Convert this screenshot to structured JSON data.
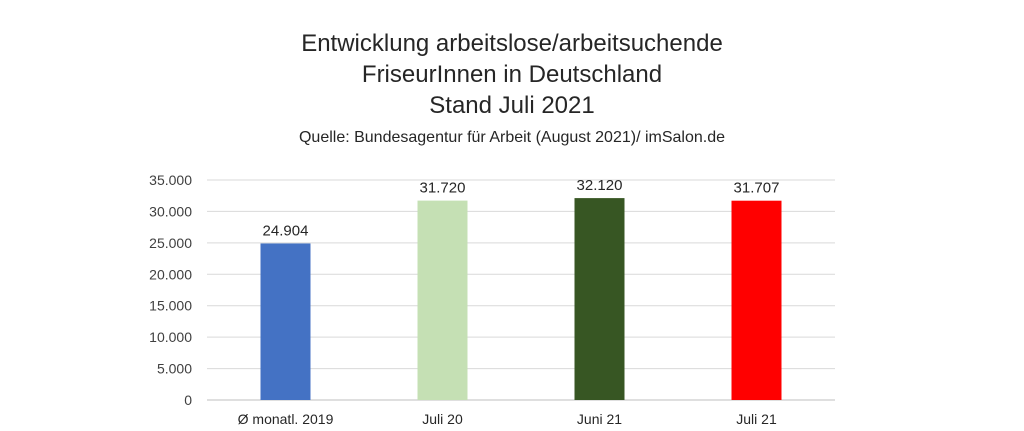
{
  "chart_data": {
    "type": "bar",
    "title_lines": [
      "Entwicklung arbeitslose/arbeitsuchende",
      "FriseurInnen in Deutschland",
      "Stand Juli 2021"
    ],
    "subtitle": "Quelle: Bundesagentur für Arbeit (August 2021)/ imSalon.de",
    "categories": [
      "Ø monatl. 2019",
      "Juli 20",
      "Juni 21",
      "Juli 21"
    ],
    "values": [
      24904,
      31720,
      32120,
      31707
    ],
    "value_labels": [
      "24.904",
      "31.720",
      "32.120",
      "31.707"
    ],
    "bar_colors": [
      "#4472C4",
      "#C5E0B4",
      "#375623",
      "#FF0000"
    ],
    "ylim": [
      0,
      35000
    ],
    "y_ticks": [
      0,
      5000,
      10000,
      15000,
      20000,
      25000,
      30000,
      35000
    ],
    "y_tick_labels": [
      "0",
      "5.000",
      "10.000",
      "15.000",
      "20.000",
      "25.000",
      "30.000",
      "35.000"
    ],
    "grid": true,
    "legend": "none"
  }
}
